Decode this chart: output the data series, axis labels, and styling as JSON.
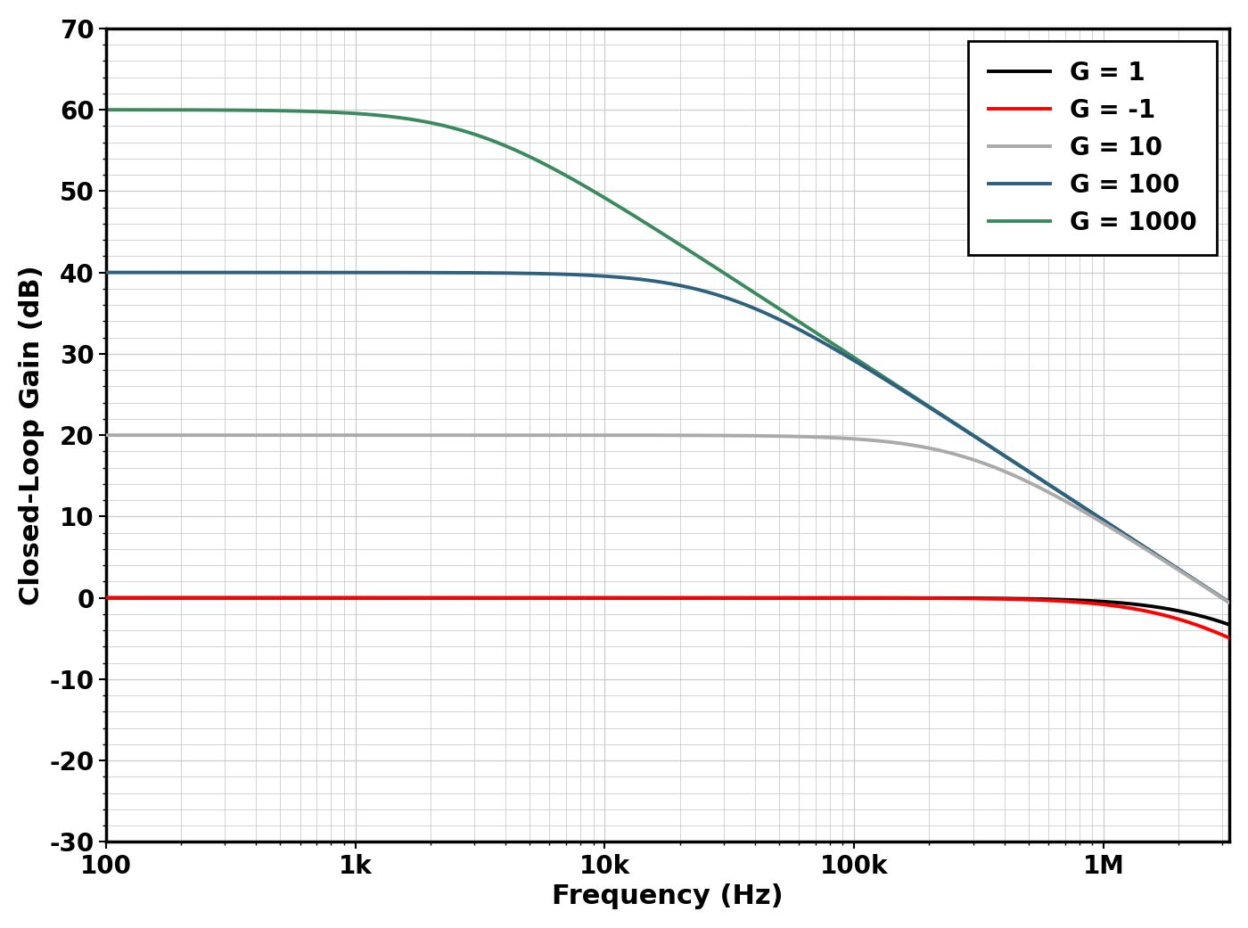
{
  "xlabel": "Frequency (Hz)",
  "ylabel": "Closed-Loop Gain (dB)",
  "ylim": [
    -30,
    70
  ],
  "yticks": [
    -30,
    -20,
    -10,
    0,
    10,
    20,
    30,
    40,
    50,
    60,
    70
  ],
  "xtick_labels": [
    "100",
    "1k",
    "10k",
    "100k",
    "1M"
  ],
  "xtick_positions": [
    100,
    1000,
    10000,
    100000,
    1000000
  ],
  "background_color": "#ffffff",
  "grid_color": "#cccccc",
  "curves": [
    {
      "label": "G = 1",
      "color": "#000000",
      "G_dc_db": 0,
      "gbw": 3000000,
      "lw": 2.8,
      "zorder": 5
    },
    {
      "label": "G = -1",
      "color": "#ff0000",
      "G_dc_db": 0,
      "gbw": 2200000,
      "lw": 2.8,
      "zorder": 6
    },
    {
      "label": "G = 10",
      "color": "#aaaaaa",
      "G_dc_db": 20,
      "gbw": 3000000,
      "lw": 2.8,
      "zorder": 4
    },
    {
      "label": "G = 100",
      "color": "#2e6080",
      "G_dc_db": 40,
      "gbw": 3000000,
      "lw": 2.8,
      "zorder": 3
    },
    {
      "label": "G = 1000",
      "color": "#3a8a5e",
      "G_dc_db": 60,
      "gbw": 3000000,
      "lw": 2.8,
      "zorder": 2
    }
  ],
  "legend_fontsize": 20,
  "axis_label_fontsize": 22,
  "tick_fontsize": 20,
  "line_color": "#000000",
  "spine_linewidth": 2.5,
  "xmin": 100,
  "xmax": 3200000
}
